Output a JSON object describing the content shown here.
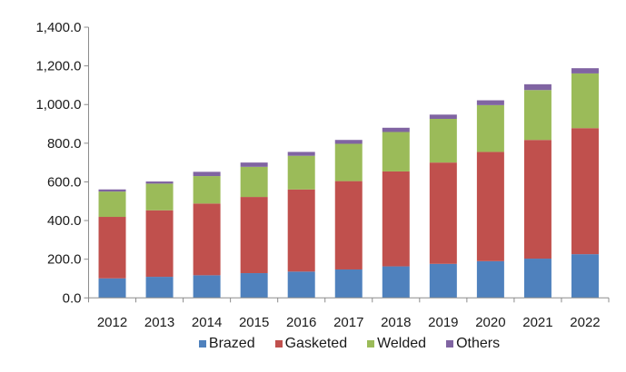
{
  "chart_data": {
    "type": "bar",
    "stacked": true,
    "title": "",
    "xlabel": "",
    "ylabel": "",
    "categories": [
      "2012",
      "2013",
      "2014",
      "2015",
      "2016",
      "2017",
      "2018",
      "2019",
      "2020",
      "2021",
      "2022"
    ],
    "ylim": [
      0,
      1400
    ],
    "yticks": [
      0,
      200,
      400,
      600,
      800,
      1000,
      1200,
      1400
    ],
    "ytick_labels": [
      "0.0",
      "200.0",
      "400.0",
      "600.0",
      "800.0",
      "1,000.0",
      "1,200.0",
      "1,400.0"
    ],
    "grid": false,
    "legend_position": "bottom",
    "series": [
      {
        "name": "Brazed",
        "color": "#4F81BD",
        "values": [
          101,
          109,
          117,
          128,
          136,
          147,
          163,
          176,
          190,
          203,
          226
        ]
      },
      {
        "name": "Gasketed",
        "color": "#C0504D",
        "values": [
          318,
          344,
          371,
          394,
          425,
          457,
          491,
          524,
          565,
          614,
          652
        ]
      },
      {
        "name": "Welded",
        "color": "#9BBB59",
        "values": [
          131,
          138,
          142,
          156,
          174,
          193,
          204,
          226,
          242,
          258,
          283
        ]
      },
      {
        "name": "Others",
        "color": "#8064A2",
        "values": [
          11,
          11,
          22,
          22,
          20,
          20,
          22,
          22,
          25,
          30,
          27
        ]
      }
    ]
  }
}
